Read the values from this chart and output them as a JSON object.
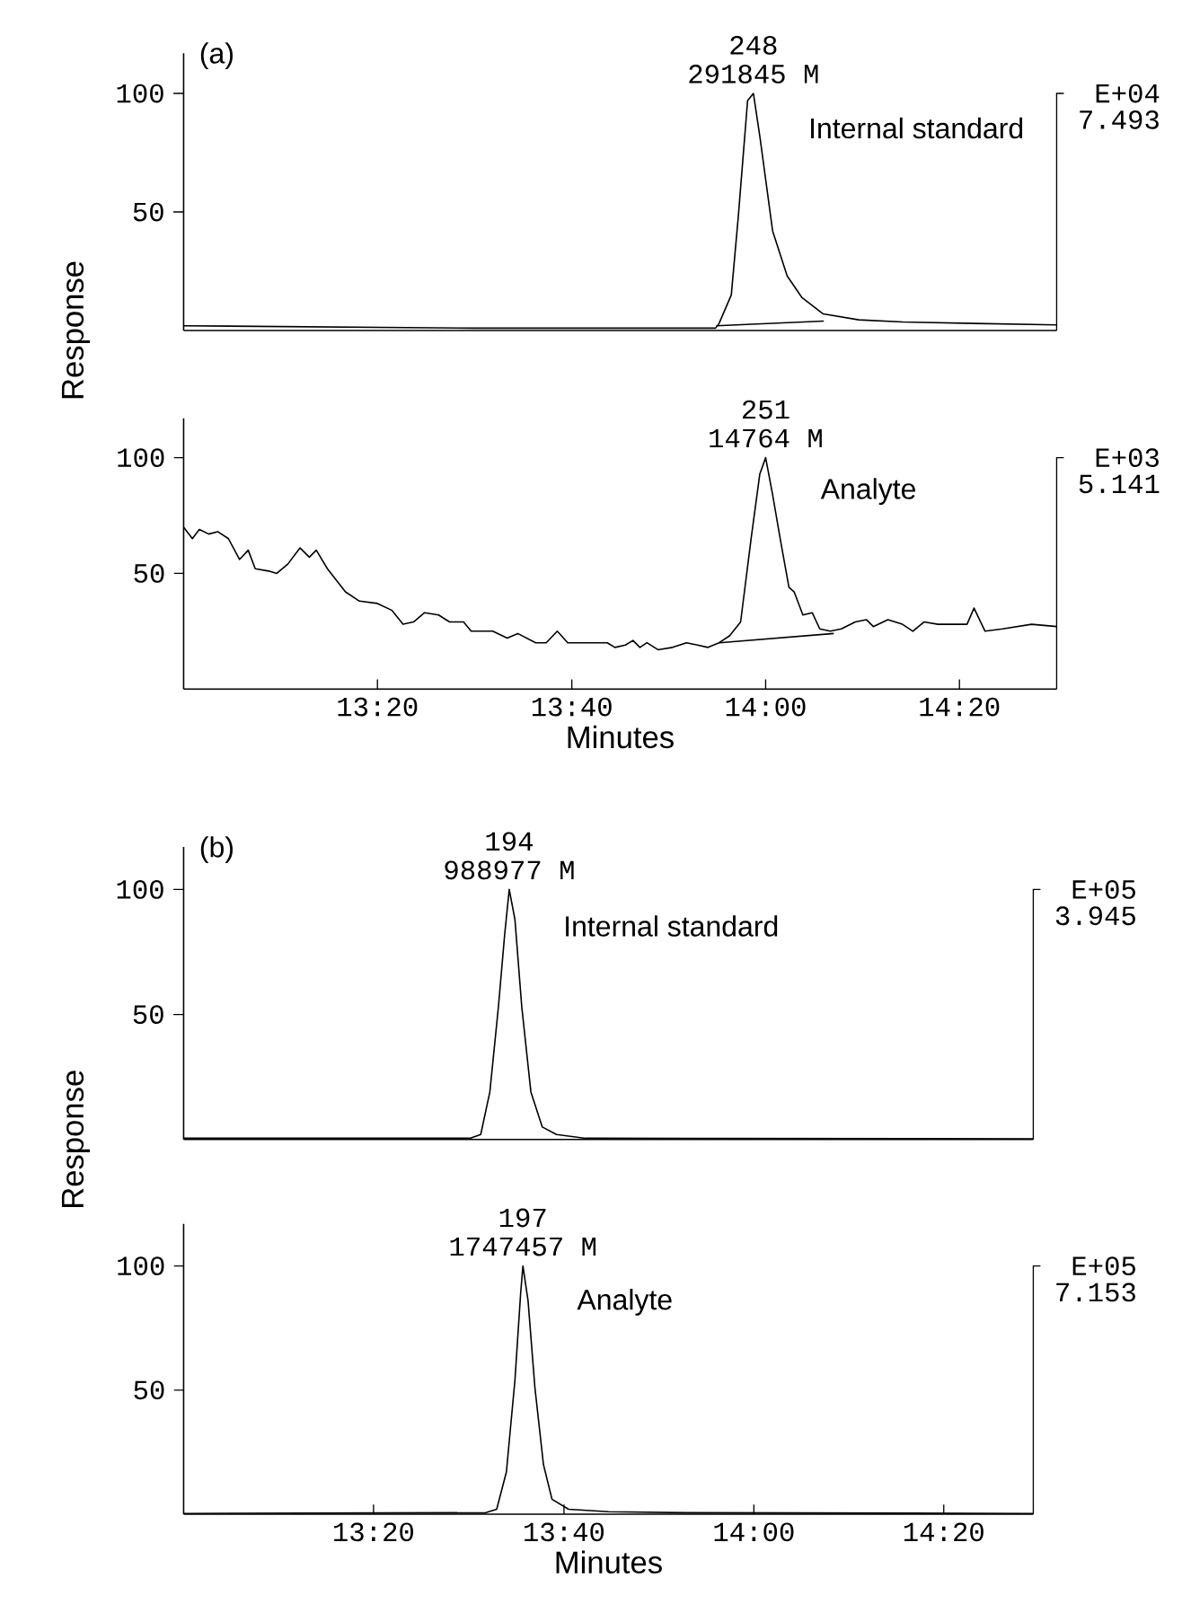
{
  "chart_data": [
    {
      "type": "line",
      "title": "(a)",
      "ylabel": "Response",
      "xlim": [
        13.0,
        14.5
      ],
      "ylim": [
        0,
        117
      ],
      "yticks": [
        50,
        100
      ],
      "tick_labels": "y",
      "annotations": [
        {
          "text": "248",
          "x": 13.979,
          "y": 100
        },
        {
          "text": "291845 M",
          "x": 13.979,
          "y": 100
        },
        "E+04",
        "7.493"
      ],
      "series": [
        {
          "name": "Internal standard",
          "color": "#000000",
          "x": [
            13.0,
            13.5,
            13.914,
            13.92,
            13.941,
            13.953,
            13.969,
            13.979,
            13.99,
            14.012,
            14.037,
            14.062,
            14.099,
            14.16,
            14.235,
            14.358,
            14.5
          ],
          "values": [
            2,
            1,
            1,
            3,
            15,
            48,
            97,
            100,
            82,
            42,
            23,
            14,
            7,
            4.5,
            3.6,
            3,
            2.4
          ]
        },
        {
          "color": "#000000",
          "x": [
            13.915,
            14.1
          ],
          "values": [
            2,
            4
          ]
        }
      ]
    },
    {
      "type": "line",
      "xlabel": "Minutes",
      "xlim": [
        13.0,
        14.5
      ],
      "ylim": [
        0,
        117
      ],
      "yticks": [
        50,
        100
      ],
      "xticks": [
        {
          "value": 13.333,
          "label": "13:20"
        },
        {
          "value": 13.667,
          "label": "13:40"
        },
        {
          "value": 14,
          "label": "14:00"
        },
        {
          "value": 14.333,
          "label": "14:20"
        }
      ],
      "annotations": [
        {
          "text": "251",
          "x": 14.0,
          "y": 100
        },
        {
          "text": "14764 M",
          "x": 14.0,
          "y": 100
        },
        "E+03",
        "5.141"
      ],
      "series": [
        {
          "name": "Analyte",
          "color": "#000000",
          "x": [
            13.0,
            13.015,
            13.027,
            13.043,
            13.059,
            13.077,
            13.096,
            13.111,
            13.123,
            13.146,
            13.16,
            13.179,
            13.2,
            13.216,
            13.228,
            13.247,
            13.278,
            13.302,
            13.333,
            13.358,
            13.377,
            13.395,
            13.414,
            13.438,
            13.457,
            13.481,
            13.494,
            13.531,
            13.556,
            13.574,
            13.605,
            13.623,
            13.642,
            13.66,
            13.691,
            13.728,
            13.741,
            13.759,
            13.772,
            13.784,
            13.796,
            13.815,
            13.84,
            13.864,
            13.883,
            13.901,
            13.92,
            13.938,
            13.957,
            13.975,
            13.99,
            14.0,
            14.012,
            14.025,
            14.04,
            14.049,
            14.064,
            14.08,
            14.093,
            14.111,
            14.13,
            14.154,
            14.173,
            14.185,
            14.21,
            14.235,
            14.253,
            14.272,
            14.296,
            14.321,
            14.346,
            14.358,
            14.377,
            14.407,
            14.457,
            14.5
          ],
          "values": [
            70,
            65,
            69,
            67,
            68,
            65,
            56,
            60,
            52,
            51,
            50,
            54,
            61,
            57,
            60,
            52,
            42,
            38,
            37,
            34,
            28,
            29,
            33,
            32,
            29,
            29,
            25,
            25,
            22,
            24,
            20,
            20,
            25,
            20,
            20,
            20,
            18,
            19,
            21,
            18,
            20,
            17,
            18,
            20,
            19,
            18,
            20,
            23,
            29,
            65,
            93,
            100,
            84,
            65,
            44,
            42,
            32,
            33,
            26,
            25,
            26,
            29,
            30,
            27,
            30,
            28,
            25,
            29,
            28,
            28,
            28,
            35,
            25,
            26,
            28,
            27
          ]
        },
        {
          "color": "#000000",
          "x": [
            13.92,
            14.117
          ],
          "values": [
            20,
            24
          ]
        }
      ]
    },
    {
      "type": "line",
      "title": "(b)",
      "ylabel": "Response",
      "xlim": [
        13.0,
        14.49
      ],
      "ylim": [
        0,
        117
      ],
      "yticks": [
        50,
        100
      ],
      "tick_labels": "y",
      "annotations": [
        {
          "text": "194",
          "x": 13.571,
          "y": 100
        },
        {
          "text": "988977 M",
          "x": 13.571,
          "y": 100
        },
        "E+05",
        "3.945"
      ],
      "series": [
        {
          "name": "Internal standard",
          "color": "#000000",
          "x": [
            13.0,
            13.502,
            13.521,
            13.537,
            13.552,
            13.563,
            13.571,
            13.581,
            13.593,
            13.609,
            13.629,
            13.654,
            13.705,
            14.49
          ],
          "values": [
            0.5,
            0.5,
            2,
            19,
            53,
            82,
            100,
            88,
            53,
            19,
            5,
            2,
            0.5,
            0.3
          ]
        }
      ]
    },
    {
      "type": "line",
      "xlabel": "Minutes",
      "xlim": [
        13.0,
        14.49
      ],
      "ylim": [
        0,
        117
      ],
      "yticks": [
        50,
        100
      ],
      "xticks": [
        {
          "value": 13.333,
          "label": "13:20"
        },
        {
          "value": 13.667,
          "label": "13:40"
        },
        {
          "value": 14,
          "label": "14:00"
        },
        {
          "value": 14.333,
          "label": "14:20"
        }
      ],
      "annotations": [
        {
          "text": "197",
          "x": 13.595,
          "y": 100
        },
        {
          "text": "1747457 M",
          "x": 13.595,
          "y": 100
        },
        "E+05",
        "7.153"
      ],
      "series": [
        {
          "name": "Analyte",
          "color": "#000000",
          "x": [
            13.0,
            13.53,
            13.549,
            13.566,
            13.581,
            13.591,
            13.595,
            13.604,
            13.616,
            13.631,
            13.646,
            13.675,
            13.745,
            13.884,
            14.49
          ],
          "values": [
            0.3,
            0.6,
            2,
            17,
            54,
            89,
            100,
            86,
            51,
            20,
            6,
            2,
            1,
            0.6,
            0.3
          ]
        }
      ]
    }
  ]
}
